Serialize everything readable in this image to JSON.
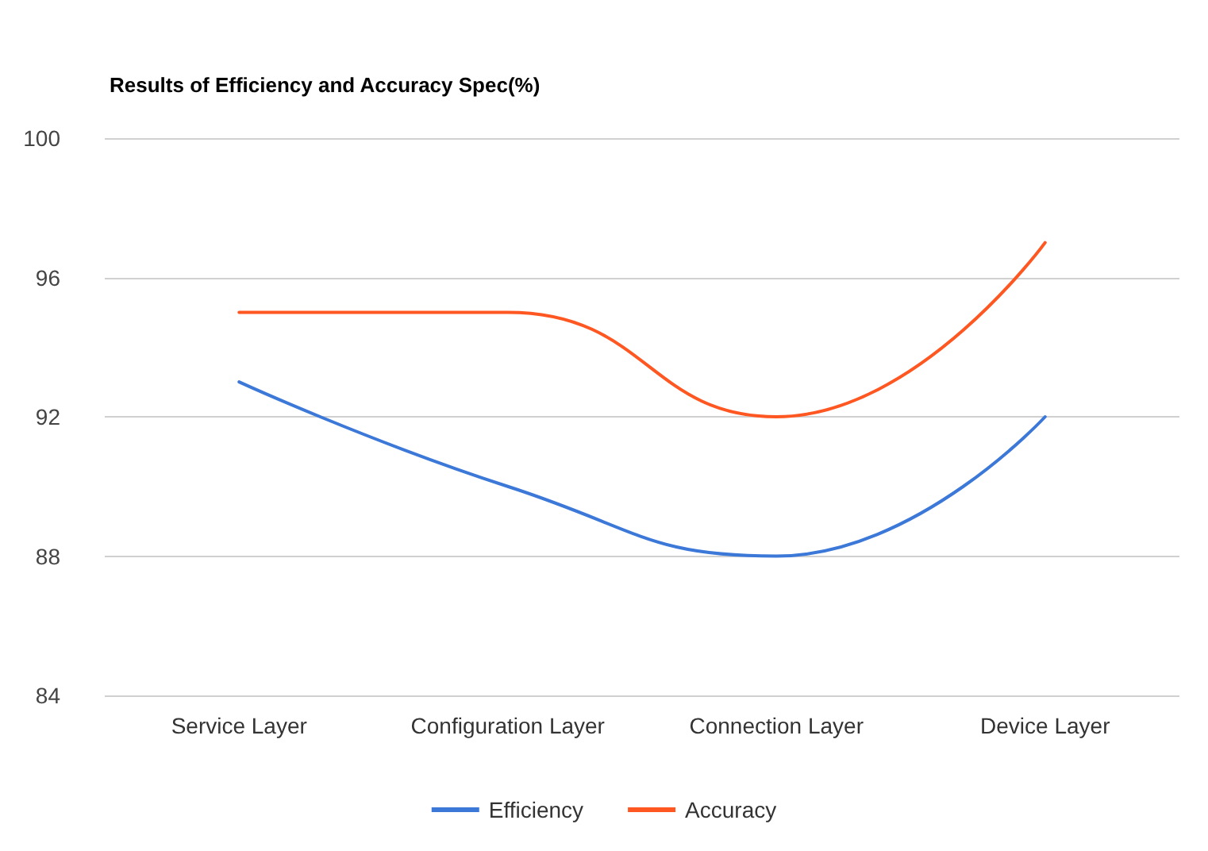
{
  "chart_data": {
    "type": "line",
    "title": "Results of Efficiency and Accuracy Spec(%)",
    "categories": [
      "Service Layer",
      "Configuration Layer",
      "Connection Layer",
      "Device Layer"
    ],
    "series": [
      {
        "name": "Efficiency",
        "color": "#3c78d8",
        "values": [
          93,
          90,
          88,
          92
        ]
      },
      {
        "name": "Accuracy",
        "color": "#ff5722",
        "values": [
          95,
          95,
          92,
          97
        ]
      }
    ],
    "ylim": [
      84,
      100
    ],
    "yticks": [
      84,
      88,
      92,
      96,
      100
    ],
    "grid": "y",
    "legend": "bottom",
    "marker": "none",
    "line_style": "solid"
  }
}
